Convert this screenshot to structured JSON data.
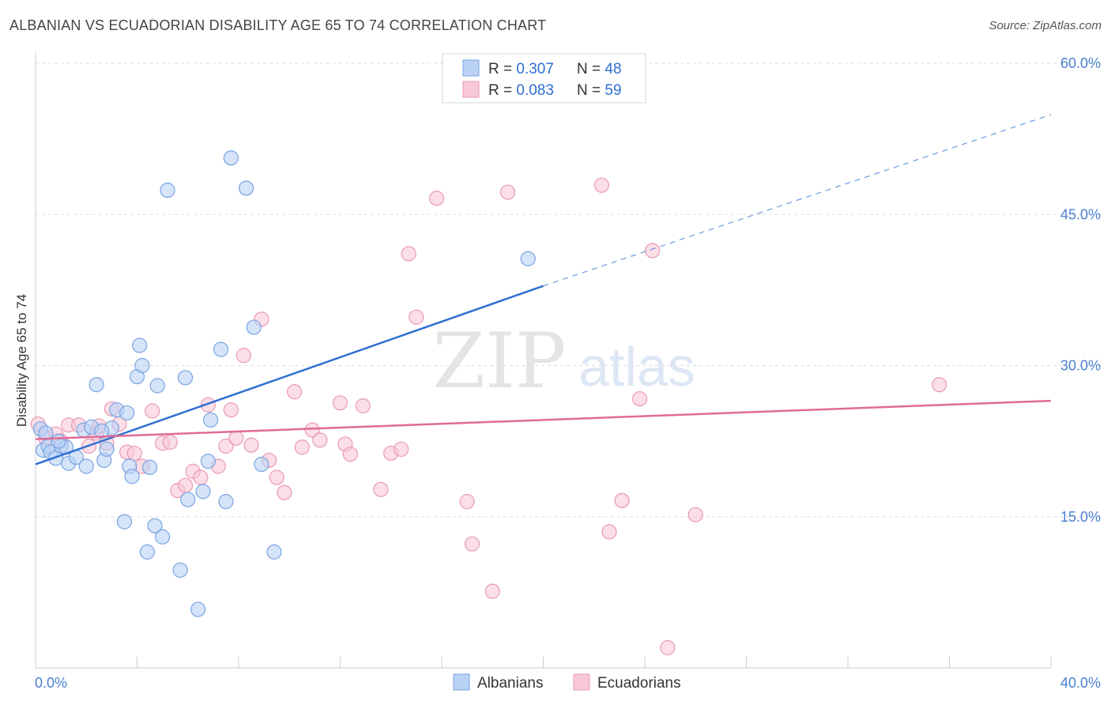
{
  "title": "ALBANIAN VS ECUADORIAN DISABILITY AGE 65 TO 74 CORRELATION CHART",
  "source": "Source: ZipAtlas.com",
  "watermark": {
    "zip": "ZIP",
    "atlas": "atlas"
  },
  "colors": {
    "albanian_fill": "#b9d2f5",
    "albanian_stroke": "#7aa3e0",
    "albanian_line": "#2e6fd1",
    "ecuadorian_fill": "#f8c8d8",
    "ecuadorian_stroke": "#e99ab5",
    "ecuadorian_line": "#e06b96",
    "tick_text": "#4a7fd1",
    "grid": "#dddddd"
  },
  "legend_top": [
    {
      "r_label": "R = ",
      "r_value": "0.307",
      "n_label": "N = ",
      "n_value": "48"
    },
    {
      "r_label": "R = ",
      "r_value": "0.083",
      "n_label": "N = ",
      "n_value": "59"
    }
  ],
  "chart_data": {
    "type": "scatter",
    "title": "ALBANIAN VS ECUADORIAN DISABILITY AGE 65 TO 74 CORRELATION CHART",
    "xlabel": "",
    "ylabel": "Disability Age 65 to 74",
    "xlim": [
      0,
      40
    ],
    "ylim": [
      0,
      60
    ],
    "x_tick_labels": [
      "0.0%",
      "40.0%"
    ],
    "y_ticks": [
      15,
      30,
      45,
      60
    ],
    "y_tick_labels": [
      "15.0%",
      "30.0%",
      "45.0%",
      "60.0%"
    ],
    "grid": true,
    "legend_position": "bottom",
    "series": [
      {
        "name": "Albanians",
        "r": 0.307,
        "n": 48,
        "trend": {
          "x": [
            0,
            20
          ],
          "y": [
            20.2,
            37.9
          ],
          "dashed_to": [
            40,
            54.9
          ]
        },
        "points": [
          [
            0.2,
            23.7
          ],
          [
            0.3,
            21.6
          ],
          [
            0.4,
            23.3
          ],
          [
            0.5,
            22.0
          ],
          [
            0.6,
            21.4
          ],
          [
            0.8,
            20.8
          ],
          [
            1.0,
            22.0
          ],
          [
            1.3,
            20.3
          ],
          [
            1.6,
            20.9
          ],
          [
            1.9,
            23.6
          ],
          [
            2.0,
            20.0
          ],
          [
            2.2,
            23.9
          ],
          [
            2.4,
            28.1
          ],
          [
            2.7,
            20.6
          ],
          [
            2.8,
            21.7
          ],
          [
            3.0,
            23.8
          ],
          [
            3.2,
            25.6
          ],
          [
            3.5,
            14.5
          ],
          [
            3.6,
            25.3
          ],
          [
            3.7,
            20.0
          ],
          [
            3.8,
            19.0
          ],
          [
            4.0,
            28.9
          ],
          [
            4.1,
            32.0
          ],
          [
            4.2,
            30.0
          ],
          [
            4.4,
            11.5
          ],
          [
            4.5,
            19.9
          ],
          [
            4.7,
            14.1
          ],
          [
            4.8,
            28.0
          ],
          [
            5.0,
            13.0
          ],
          [
            5.2,
            47.4
          ],
          [
            5.7,
            9.7
          ],
          [
            5.9,
            28.8
          ],
          [
            6.0,
            16.7
          ],
          [
            6.4,
            5.8
          ],
          [
            6.6,
            17.5
          ],
          [
            6.8,
            20.5
          ],
          [
            6.9,
            24.6
          ],
          [
            7.3,
            31.6
          ],
          [
            7.5,
            16.5
          ],
          [
            7.7,
            50.6
          ],
          [
            8.3,
            47.6
          ],
          [
            8.6,
            33.8
          ],
          [
            8.9,
            20.2
          ],
          [
            9.4,
            11.5
          ],
          [
            19.4,
            40.6
          ],
          [
            2.6,
            23.5
          ],
          [
            1.2,
            21.9
          ],
          [
            0.9,
            22.5
          ]
        ]
      },
      {
        "name": "Ecuadorians",
        "r": 0.083,
        "n": 59,
        "trend": {
          "x": [
            0,
            40
          ],
          "y": [
            22.7,
            26.5
          ]
        },
        "points": [
          [
            0.1,
            24.2
          ],
          [
            0.4,
            22.8
          ],
          [
            0.8,
            23.2
          ],
          [
            1.0,
            22.5
          ],
          [
            1.3,
            24.1
          ],
          [
            1.7,
            24.1
          ],
          [
            2.1,
            22.0
          ],
          [
            2.4,
            23.3
          ],
          [
            2.5,
            24.0
          ],
          [
            2.8,
            22.3
          ],
          [
            3.0,
            25.7
          ],
          [
            3.3,
            24.2
          ],
          [
            3.6,
            21.4
          ],
          [
            3.9,
            21.3
          ],
          [
            4.2,
            20.0
          ],
          [
            4.6,
            25.5
          ],
          [
            5.0,
            22.3
          ],
          [
            5.3,
            22.4
          ],
          [
            5.6,
            17.6
          ],
          [
            5.9,
            18.1
          ],
          [
            6.2,
            19.5
          ],
          [
            6.5,
            18.9
          ],
          [
            6.8,
            26.1
          ],
          [
            7.2,
            20.0
          ],
          [
            7.5,
            22.0
          ],
          [
            7.7,
            25.6
          ],
          [
            7.9,
            22.8
          ],
          [
            8.2,
            31.0
          ],
          [
            8.5,
            22.1
          ],
          [
            8.9,
            34.6
          ],
          [
            9.2,
            20.6
          ],
          [
            9.5,
            18.9
          ],
          [
            9.8,
            17.4
          ],
          [
            10.2,
            27.4
          ],
          [
            10.5,
            21.9
          ],
          [
            10.9,
            23.6
          ],
          [
            11.2,
            22.6
          ],
          [
            12.0,
            26.3
          ],
          [
            12.2,
            22.2
          ],
          [
            12.4,
            21.2
          ],
          [
            12.9,
            26.0
          ],
          [
            13.6,
            17.7
          ],
          [
            14.0,
            21.3
          ],
          [
            14.4,
            21.7
          ],
          [
            14.7,
            41.1
          ],
          [
            15.0,
            34.8
          ],
          [
            15.8,
            46.6
          ],
          [
            17.0,
            16.5
          ],
          [
            17.2,
            12.3
          ],
          [
            18.0,
            7.6
          ],
          [
            18.6,
            47.2
          ],
          [
            22.3,
            47.9
          ],
          [
            22.6,
            13.5
          ],
          [
            23.1,
            16.6
          ],
          [
            24.3,
            41.4
          ],
          [
            24.9,
            2.0
          ],
          [
            26.0,
            15.2
          ],
          [
            23.8,
            26.7
          ],
          [
            35.6,
            28.1
          ]
        ]
      }
    ]
  }
}
